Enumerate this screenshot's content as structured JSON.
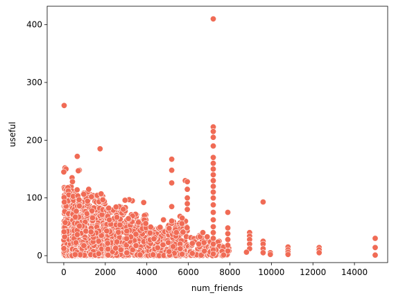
{
  "chart_data": {
    "type": "scatter",
    "xlabel": "num_friends",
    "ylabel": "useful",
    "xlim": [
      -800,
      15600
    ],
    "ylim": [
      -12,
      432
    ],
    "x_ticks": [
      0,
      2000,
      4000,
      6000,
      8000,
      10000,
      12000,
      14000
    ],
    "y_ticks": [
      0,
      100,
      200,
      300,
      400
    ],
    "marker_color": "#f06b55",
    "grid": false,
    "legend": "none",
    "points": [
      {
        "x": 7200,
        "y": 410
      },
      {
        "x": 7200,
        "y": 223
      },
      {
        "x": 7200,
        "y": 215
      },
      {
        "x": 7200,
        "y": 205
      },
      {
        "x": 7200,
        "y": 190
      },
      {
        "x": 7200,
        "y": 170
      },
      {
        "x": 7200,
        "y": 160
      },
      {
        "x": 7200,
        "y": 150
      },
      {
        "x": 7200,
        "y": 140
      },
      {
        "x": 7200,
        "y": 130
      },
      {
        "x": 7200,
        "y": 120
      },
      {
        "x": 7200,
        "y": 110
      },
      {
        "x": 7200,
        "y": 100
      },
      {
        "x": 7200,
        "y": 88
      },
      {
        "x": 7200,
        "y": 75
      },
      {
        "x": 7200,
        "y": 62
      },
      {
        "x": 7200,
        "y": 50
      },
      {
        "x": 7200,
        "y": 40
      },
      {
        "x": 7200,
        "y": 30
      },
      {
        "x": 7200,
        "y": 20
      },
      {
        "x": 7200,
        "y": 10
      },
      {
        "x": 7200,
        "y": 3
      },
      {
        "x": 20,
        "y": 260
      },
      {
        "x": 1750,
        "y": 185
      },
      {
        "x": 650,
        "y": 172
      },
      {
        "x": 5200,
        "y": 167
      },
      {
        "x": 5200,
        "y": 148
      },
      {
        "x": 5200,
        "y": 126
      },
      {
        "x": 5200,
        "y": 85
      },
      {
        "x": 5200,
        "y": 60
      },
      {
        "x": 5850,
        "y": 130
      },
      {
        "x": 5950,
        "y": 128
      },
      {
        "x": 5950,
        "y": 115
      },
      {
        "x": 5950,
        "y": 100
      },
      {
        "x": 5950,
        "y": 90
      },
      {
        "x": 5950,
        "y": 80
      },
      {
        "x": 9600,
        "y": 93
      },
      {
        "x": 9600,
        "y": 25
      },
      {
        "x": 9600,
        "y": 20
      },
      {
        "x": 9600,
        "y": 12
      },
      {
        "x": 9600,
        "y": 5
      },
      {
        "x": 7900,
        "y": 75
      },
      {
        "x": 7900,
        "y": 48
      },
      {
        "x": 7900,
        "y": 38
      },
      {
        "x": 7900,
        "y": 28
      },
      {
        "x": 7900,
        "y": 18
      },
      {
        "x": 7900,
        "y": 8
      },
      {
        "x": 8950,
        "y": 40
      },
      {
        "x": 8950,
        "y": 34
      },
      {
        "x": 8950,
        "y": 28
      },
      {
        "x": 8950,
        "y": 20
      },
      {
        "x": 8950,
        "y": 12
      },
      {
        "x": 8800,
        "y": 6
      },
      {
        "x": 9950,
        "y": 5
      },
      {
        "x": 9950,
        "y": 2
      },
      {
        "x": 10800,
        "y": 15
      },
      {
        "x": 10800,
        "y": 10
      },
      {
        "x": 10800,
        "y": 6
      },
      {
        "x": 10800,
        "y": 2
      },
      {
        "x": 12300,
        "y": 14
      },
      {
        "x": 12300,
        "y": 10
      },
      {
        "x": 12300,
        "y": 5
      },
      {
        "x": 15000,
        "y": 30
      },
      {
        "x": 15000,
        "y": 14
      },
      {
        "x": 15000,
        "y": 1
      },
      {
        "x": 3850,
        "y": 92
      },
      {
        "x": 3300,
        "y": 95
      },
      {
        "x": 3150,
        "y": 97
      },
      {
        "x": 2950,
        "y": 96
      },
      {
        "x": 1800,
        "y": 107
      },
      {
        "x": 1200,
        "y": 115
      },
      {
        "x": 750,
        "y": 148
      },
      {
        "x": 700,
        "y": 147
      },
      {
        "x": 60,
        "y": 152
      },
      {
        "x": 110,
        "y": 150
      },
      {
        "x": 0,
        "y": 145
      },
      {
        "x": 400,
        "y": 135
      },
      {
        "x": 420,
        "y": 128
      },
      {
        "x": 5600,
        "y": 68
      },
      {
        "x": 5700,
        "y": 65
      },
      {
        "x": 4800,
        "y": 62
      },
      {
        "x": 6700,
        "y": 40
      },
      {
        "x": 6500,
        "y": 20
      }
    ],
    "clusters": [
      {
        "x": [
          0,
          400
        ],
        "y": [
          0,
          120
        ],
        "n": 380
      },
      {
        "x": [
          400,
          1300
        ],
        "y": [
          0,
          115
        ],
        "n": 380
      },
      {
        "x": [
          1300,
          2000
        ],
        "y": [
          0,
          105
        ],
        "n": 240
      },
      {
        "x": [
          2000,
          3000
        ],
        "y": [
          0,
          85
        ],
        "n": 200
      },
      {
        "x": [
          3000,
          4000
        ],
        "y": [
          0,
          75
        ],
        "n": 160
      },
      {
        "x": [
          4000,
          5000
        ],
        "y": [
          0,
          50
        ],
        "n": 120
      },
      {
        "x": [
          5000,
          6000
        ],
        "y": [
          0,
          60
        ],
        "n": 150
      },
      {
        "x": [
          6000,
          7000
        ],
        "y": [
          0,
          35
        ],
        "n": 70
      },
      {
        "x": [
          7000,
          7600
        ],
        "y": [
          0,
          25
        ],
        "n": 40
      },
      {
        "x": [
          7600,
          8000
        ],
        "y": [
          0,
          15
        ],
        "n": 15
      }
    ]
  }
}
